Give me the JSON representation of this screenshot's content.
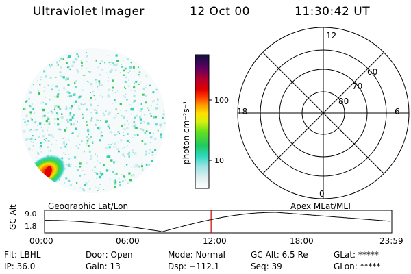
{
  "header": {
    "title": "Ultraviolet Imager",
    "date": "12 Oct 00",
    "time": "11:30:42 UT"
  },
  "colorbar": {
    "unit_label": "photon cm⁻²s⁻¹",
    "tick_100": "100",
    "tick_10": "10"
  },
  "polar_plot": {
    "mlt_top": "12",
    "mlt_left": "18",
    "mlt_right": "6",
    "mlt_bottom": "0",
    "lat_60": "60",
    "lat_70": "70",
    "lat_80": "80"
  },
  "panels": {
    "left_caption": "Geographic Lat/Lon",
    "right_caption": "Apex MLat/MLT"
  },
  "altitude_strip": {
    "axis_label": "GC Alt",
    "y_max": "9.0",
    "y_min": "1.8",
    "x_ticks": [
      "00:00",
      "06:00",
      "12:00",
      "18:00",
      "23:59"
    ],
    "current_time_hours": 11.51,
    "cursor_color": "#cc0000"
  },
  "status": {
    "flt": "Flt: LBHL",
    "ip": "IP: 36.0",
    "door": "Door: Open",
    "gain": "Gain: 13",
    "mode": "Mode: Normal",
    "dsp": "Dsp: −112.1",
    "gc_alt": "GC Alt: 6.5 Re",
    "seq": "Seq: 39",
    "glat": "GLat: *****",
    "glon": "GLon: *****"
  }
}
